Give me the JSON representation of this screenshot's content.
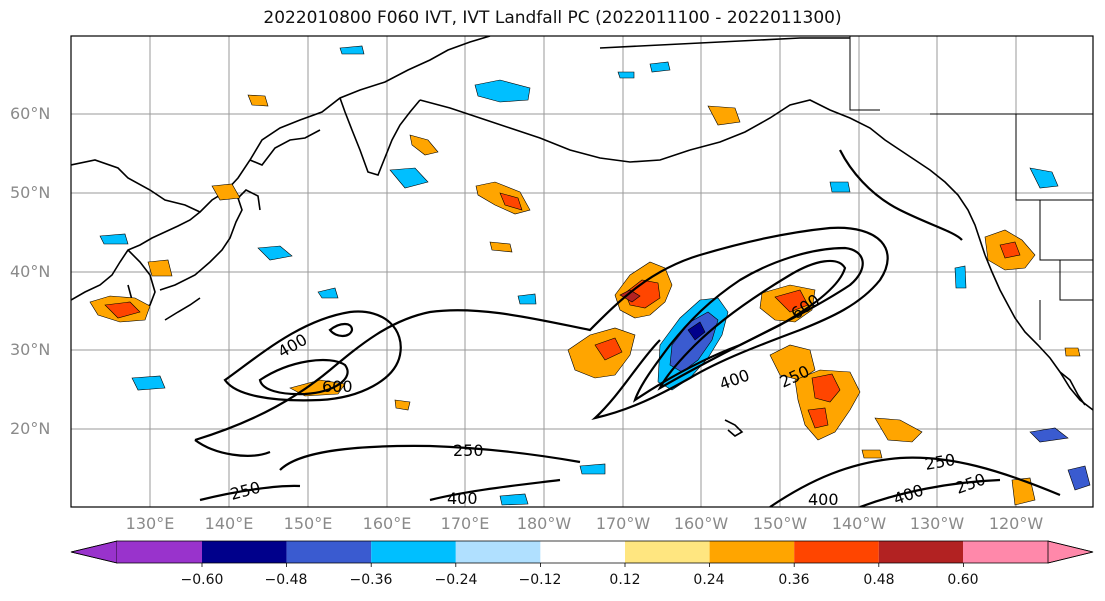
{
  "title": "2022010800 F060 IVT, IVT Landfall PC (2022011100 - 2022011300)",
  "lat_labels": [
    "60°N",
    "50°N",
    "40°N",
    "30°N",
    "20°N"
  ],
  "lon_labels": [
    "130°E",
    "140°E",
    "150°E",
    "160°E",
    "170°E",
    "180°W",
    "170°W",
    "160°W",
    "150°W",
    "140°W",
    "130°W",
    "120°W"
  ],
  "contour_labels": [
    "400",
    "600",
    "400",
    "600",
    "250",
    "250",
    "250",
    "400",
    "400",
    "400",
    "250",
    "250"
  ],
  "colorbar": {
    "ticks": [
      "−0.60",
      "−0.48",
      "−0.36",
      "−0.24",
      "−0.12",
      "0.12",
      "0.24",
      "0.36",
      "0.48",
      "0.60"
    ],
    "colors": [
      "#9933cc",
      "#00008b",
      "#3a5bd0",
      "#00bfff",
      "#b0e0ff",
      "#ffffff",
      "#ffe680",
      "#ffa500",
      "#ff4500",
      "#b22222",
      "#ff88aa"
    ]
  }
}
